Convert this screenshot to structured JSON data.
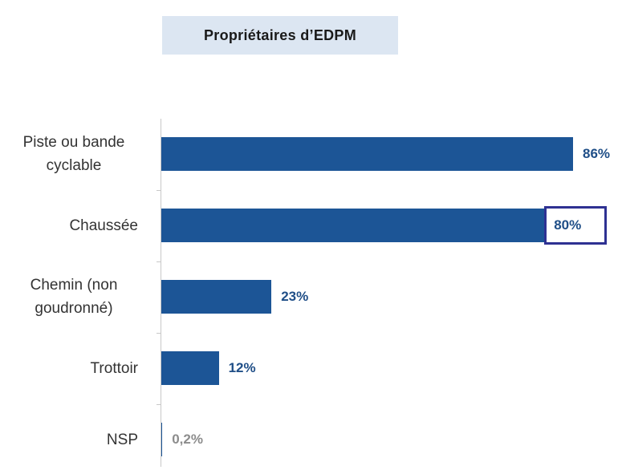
{
  "chart_data": {
    "type": "bar",
    "orientation": "horizontal",
    "title": "Propriétaires d’EDPM",
    "categories": [
      "Piste ou bande cyclable",
      "Chaussée",
      "Chemin (non goudronné)",
      "Trottoir",
      "NSP"
    ],
    "values": [
      86,
      80,
      23,
      12,
      0.2
    ],
    "value_labels": [
      "86%",
      "80%",
      "23%",
      "12%",
      "0,2%"
    ],
    "color": "#1c5596",
    "value_label_colors": [
      "#1f4e87",
      "#1f4e87",
      "#1f4e87",
      "#1f4e87",
      "#8c8c8c"
    ],
    "highlight": 1,
    "highlight_color": "#2e3192"
  }
}
